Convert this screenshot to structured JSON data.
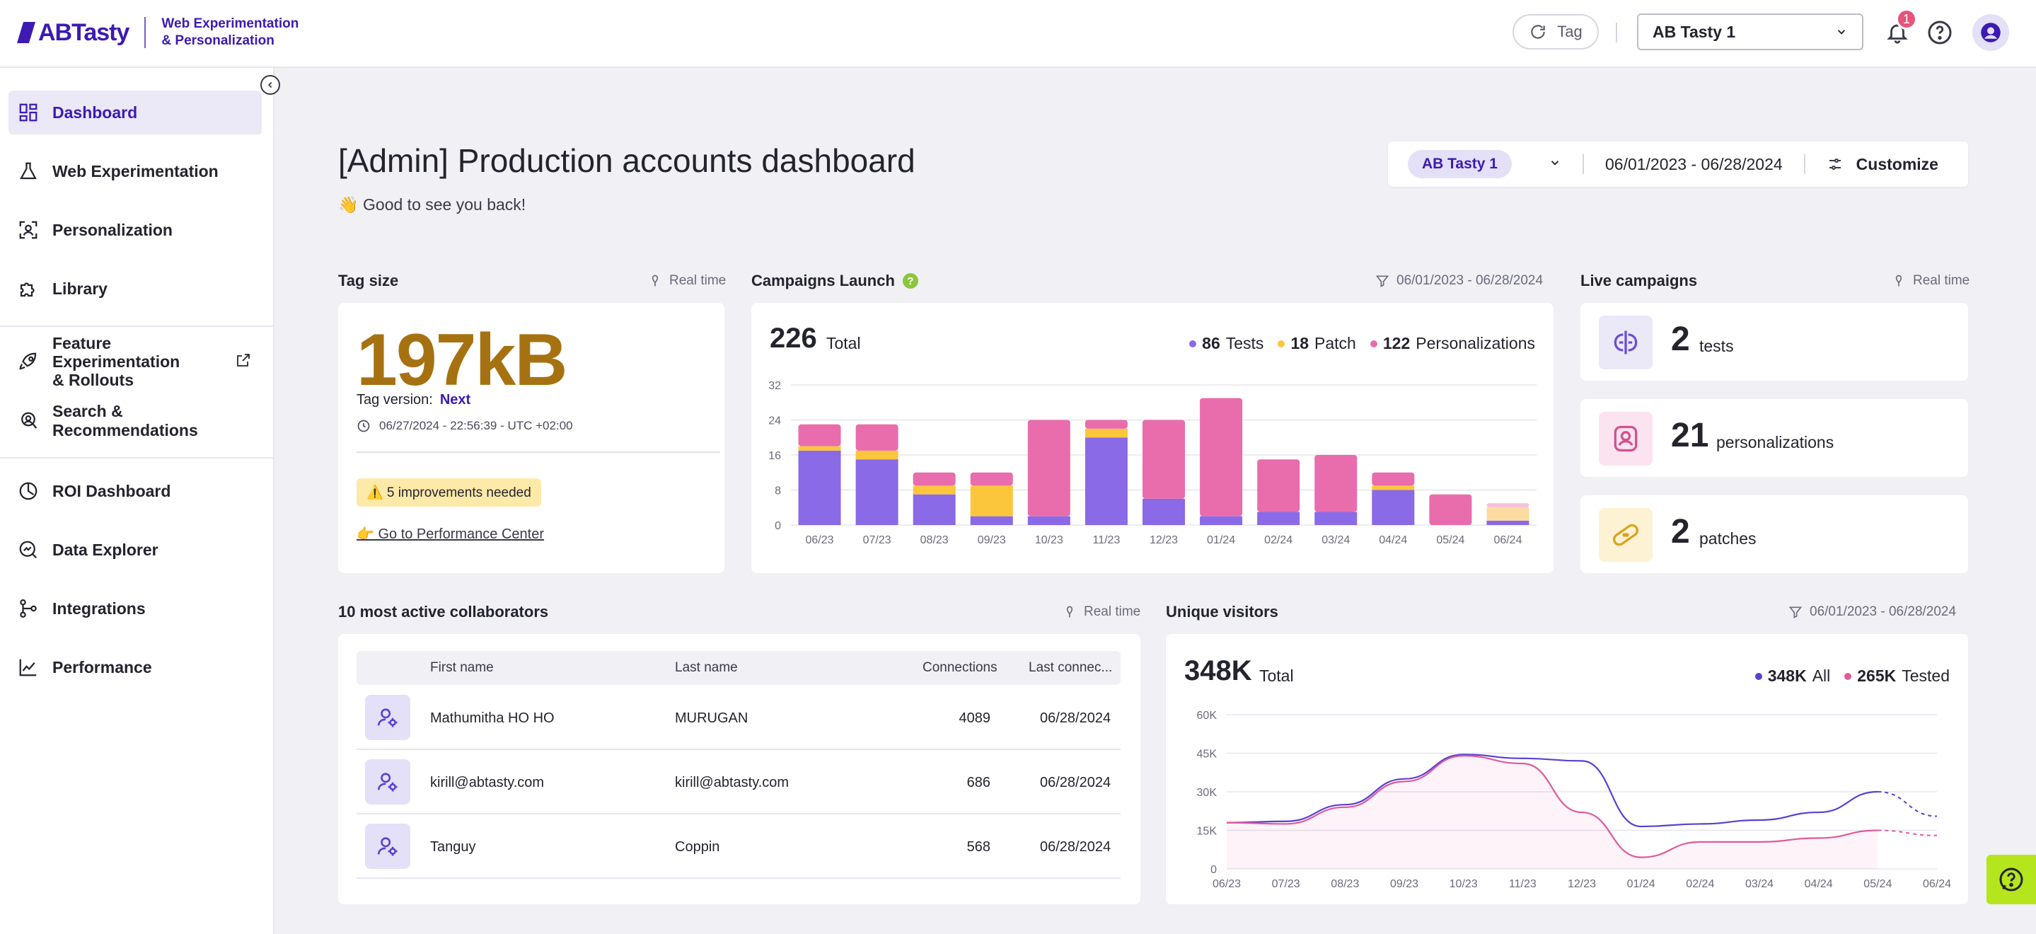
{
  "brand": {
    "name": "ABTasty",
    "tagline_line1": "Web Experimentation",
    "tagline_line2": "& Personalization",
    "primary": "#3d1ab3"
  },
  "topbar": {
    "tag_button_label": "Tag",
    "account_select": "AB Tasty 1",
    "notification_count": "1",
    "icons": [
      "refresh-icon",
      "chevron-down-icon",
      "bell-icon",
      "help-circle-icon",
      "user-avatar-icon"
    ]
  },
  "sidebar": {
    "items": [
      {
        "label": "Dashboard",
        "icon": "dashboard-icon",
        "active": true
      },
      {
        "label": "Web Experimentation",
        "icon": "flask-icon"
      },
      {
        "label": "Personalization",
        "icon": "face-scan-icon"
      },
      {
        "label": "Library",
        "icon": "puzzle-icon"
      },
      {
        "label_line1": "Feature Experimentation",
        "label_line2": "& Rollouts",
        "icon": "rocket-icon",
        "external": true
      },
      {
        "label": "Search & Recommendations",
        "icon": "search-person-icon"
      },
      {
        "label": "ROI Dashboard",
        "icon": "clock-chart-icon"
      },
      {
        "label": "Data Explorer",
        "icon": "data-explorer-icon"
      },
      {
        "label": "Integrations",
        "icon": "integrations-icon"
      },
      {
        "label": "Performance",
        "icon": "line-chart-icon"
      }
    ]
  },
  "header": {
    "title": "[Admin] Production accounts dashboard",
    "greeting": "👋 Good to see you back!",
    "account_chip": "AB Tasty 1",
    "date_range": "06/01/2023 - 06/28/2024",
    "customize_label": "Customize"
  },
  "tag_size": {
    "title": "Tag size",
    "realtime": "Real time",
    "value": "197kB",
    "version_label": "Tag version:",
    "version_value": "Next",
    "date": "06/27/2024 - 22:56:39 - UTC +02:00",
    "warning": "⚠️ 5 improvements needed",
    "link": "👉 Go to Performance Center",
    "value_color": "#a67211"
  },
  "campaigns": {
    "title": "Campaigns Launch",
    "date_range": "06/01/2023 - 06/28/2024",
    "total": "226",
    "total_label": "Total",
    "legend": [
      {
        "count": "86",
        "label": "Tests",
        "color": "#8a6ae6"
      },
      {
        "count": "18",
        "label": "Patch",
        "color": "#fcc63c"
      },
      {
        "count": "122",
        "label": "Personalizations",
        "color": "#e96dac"
      }
    ]
  },
  "live": {
    "title": "Live campaigns",
    "realtime": "Real time",
    "items": [
      {
        "count": "2",
        "label": "tests",
        "icon": "ab-split-icon",
        "bg": "#ebe8f8",
        "fg": "#6b4fd6"
      },
      {
        "count": "21",
        "label": "personalizations",
        "icon": "personalization-icon",
        "bg": "#fbe4ef",
        "fg": "#d4508f"
      },
      {
        "count": "2",
        "label": "patches",
        "icon": "bandage-icon",
        "bg": "#fdf2d3",
        "fg": "#d9a321"
      }
    ]
  },
  "collaborators": {
    "title": "10 most active collaborators",
    "realtime": "Real time",
    "columns": [
      "First name",
      "Last name",
      "Connections",
      "Last connec..."
    ],
    "rows": [
      {
        "first": "Mathumitha HO HO",
        "last": "MURUGAN",
        "connections": "4089",
        "last_connection": "06/28/2024"
      },
      {
        "first": "kirill@abtasty.com",
        "last": "kirill@abtasty.com",
        "connections": "686",
        "last_connection": "06/28/2024"
      },
      {
        "first": "Tanguy",
        "last": "Coppin",
        "connections": "568",
        "last_connection": "06/28/2024"
      }
    ]
  },
  "visitors": {
    "title": "Unique visitors",
    "date_range": "06/01/2023 - 06/28/2024",
    "total": "348K",
    "total_label": "Total",
    "legend": [
      {
        "count": "348K",
        "label": "All",
        "color": "#5b3fd1"
      },
      {
        "count": "265K",
        "label": "Tested",
        "color": "#e0599c"
      }
    ]
  },
  "chart_data": [
    {
      "type": "bar",
      "stacked": true,
      "categories": [
        "06/23",
        "07/23",
        "08/23",
        "09/23",
        "10/23",
        "11/23",
        "12/23",
        "01/24",
        "02/24",
        "03/24",
        "04/24",
        "05/24",
        "06/24"
      ],
      "series": [
        {
          "name": "Tests",
          "color": "#8a6ae6",
          "values": [
            17,
            15,
            7,
            2,
            2,
            20,
            6,
            2,
            3,
            3,
            8,
            0,
            1
          ]
        },
        {
          "name": "Patch",
          "color": "#fcc63c",
          "values": [
            1,
            2,
            2,
            7,
            0,
            2,
            0,
            0,
            0,
            0,
            1,
            0,
            0
          ]
        },
        {
          "name": "Personalizations",
          "color": "#e96dac",
          "values": [
            5,
            6,
            3,
            3,
            22,
            2,
            18,
            27,
            12,
            13,
            3,
            7,
            0
          ]
        },
        {
          "name": "",
          "color": "#fcdba0",
          "values": [
            0,
            0,
            0,
            0,
            0,
            0,
            0,
            0,
            0,
            0,
            0,
            0,
            3
          ]
        },
        {
          "name": "",
          "color": "#f5c2dd",
          "values": [
            0,
            0,
            0,
            0,
            0,
            0,
            0,
            0,
            0,
            0,
            0,
            0,
            1
          ]
        }
      ],
      "yticks": [
        "0",
        "8",
        "16",
        "24",
        "32"
      ],
      "ylim": [
        0,
        32
      ],
      "grid": true
    },
    {
      "type": "line",
      "x": [
        "06/23",
        "07/23",
        "08/23",
        "09/23",
        "10/23",
        "11/23",
        "12/23",
        "01/24",
        "02/24",
        "03/24",
        "04/24",
        "05/24",
        "06/24"
      ],
      "series": [
        {
          "name": "All",
          "color": "#5b3fd1",
          "values": [
            18000,
            18500,
            25000,
            35000,
            44500,
            43000,
            42000,
            16500,
            17500,
            19000,
            22000,
            30000,
            20500
          ]
        },
        {
          "name": "Tested",
          "color": "#e0599c",
          "values": [
            18000,
            17500,
            24000,
            34000,
            44000,
            41000,
            22000,
            4500,
            10500,
            10500,
            12000,
            15000,
            13000
          ]
        }
      ],
      "projected_from": "05/24",
      "yticks": [
        "0",
        "15K",
        "30K",
        "45K",
        "60K"
      ],
      "ylim": [
        0,
        60000
      ],
      "grid": true
    }
  ]
}
